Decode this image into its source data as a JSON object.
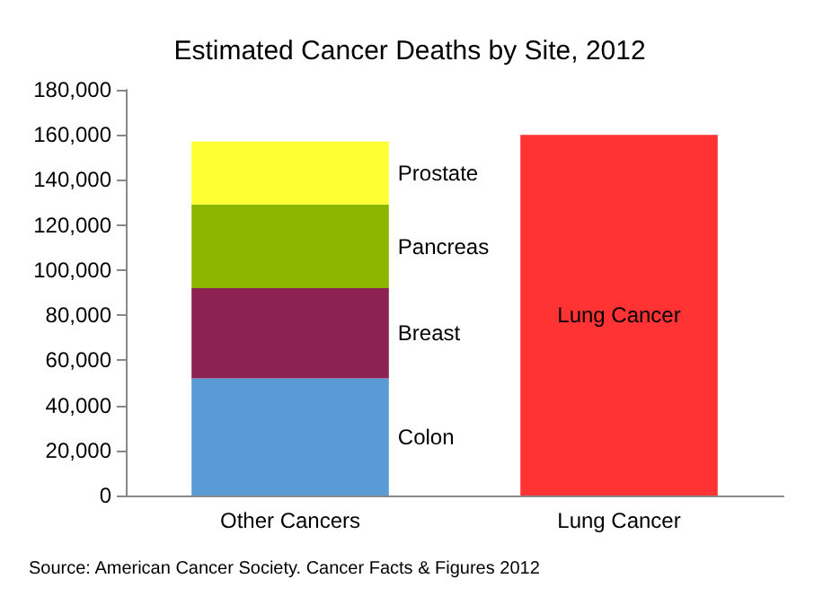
{
  "chart_data": {
    "type": "bar",
    "title": "Estimated Cancer Deaths by Site, 2012",
    "categories": [
      "Other Cancers",
      "Lung Cancer"
    ],
    "stacked": true,
    "series": [
      {
        "name": "Colon",
        "color": "#5b9bd5",
        "values": [
          52000,
          null
        ]
      },
      {
        "name": "Breast",
        "color": "#8b2252",
        "values": [
          40000,
          null
        ]
      },
      {
        "name": "Pancreas",
        "color": "#8db600",
        "values": [
          37000,
          null
        ]
      },
      {
        "name": "Prostate",
        "color": "#ffff33",
        "values": [
          28000,
          null
        ]
      },
      {
        "name": "Lung Cancer",
        "color": "#ff3333",
        "values": [
          null,
          160000
        ]
      }
    ],
    "ylim": [
      0,
      180000
    ],
    "yticks": [
      0,
      {
        "value": 20000,
        "label": "20,000"
      },
      {
        "value": 40000,
        "label": "40,000"
      },
      {
        "value": 60000,
        "label": "60,000"
      },
      {
        "value": 80000,
        "label": "80,000"
      },
      {
        "value": 100000,
        "label": "100,000"
      },
      {
        "value": 120000,
        "label": "120,000"
      },
      {
        "value": 140000,
        "label": "140,000"
      },
      {
        "value": 160000,
        "label": "160,000"
      },
      {
        "value": 180000,
        "label": "180,000"
      }
    ],
    "grid": false,
    "legend": false,
    "annotations": [
      "Source: American Cancer Society. Cancer Facts & Figures 2012"
    ]
  }
}
